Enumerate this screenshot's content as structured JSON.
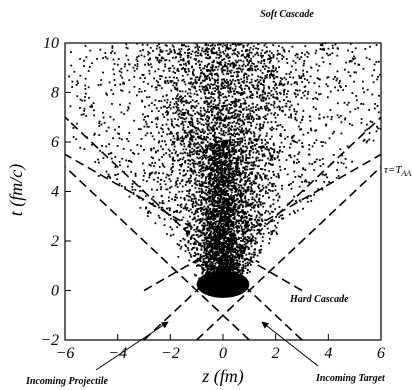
{
  "chart_data": {
    "type": "scatter",
    "xlabel": "z (fm)",
    "ylabel": "t (fm/c)",
    "xlim": [
      -6,
      6
    ],
    "ylim": [
      -2,
      10
    ],
    "xticks": [
      "−6",
      "−4",
      "−2",
      "0",
      "2",
      "4",
      "6"
    ],
    "yticks": [
      "−2",
      "0",
      "2",
      "4",
      "6",
      "8",
      "10"
    ],
    "grid": false,
    "series": [
      {
        "kind": "scatter-cloud",
        "points": [
          [
            0.0,
            0.3
          ],
          [
            -0.5,
            0.3
          ],
          [
            0.5,
            0.3
          ],
          [
            -0.3,
            0.0
          ],
          [
            0.3,
            0.0
          ],
          [
            0.0,
            0.5
          ],
          [
            -0.2,
            1.5
          ],
          [
            0.2,
            2.0
          ],
          [
            -0.4,
            2.5
          ],
          [
            0.3,
            3.0
          ],
          [
            0.0,
            3.5
          ],
          [
            -0.3,
            4.0
          ],
          [
            0.4,
            4.5
          ],
          [
            -0.5,
            5.0
          ],
          [
            0.1,
            5.5
          ],
          [
            -0.2,
            6.0
          ],
          [
            0.5,
            6.5
          ],
          [
            -0.6,
            7.0
          ],
          [
            0.3,
            7.5
          ],
          [
            -0.1,
            8.0
          ],
          [
            0.6,
            8.5
          ],
          [
            -0.4,
            9.0
          ],
          [
            0.2,
            9.5
          ],
          [
            -0.3,
            9.9
          ],
          [
            1.2,
            4.0
          ],
          [
            -1.3,
            4.5
          ],
          [
            1.8,
            5.5
          ],
          [
            -1.9,
            6.0
          ],
          [
            2.5,
            7.0
          ],
          [
            -2.6,
            7.5
          ],
          [
            3.2,
            8.5
          ],
          [
            -3.4,
            9.0
          ],
          [
            4.0,
            9.5
          ],
          [
            -4.2,
            9.8
          ],
          [
            1.0,
            6.8
          ],
          [
            -1.1,
            8.2
          ],
          [
            2.0,
            8.9
          ],
          [
            -2.2,
            9.3
          ],
          [
            3.0,
            9.6
          ],
          [
            -3.0,
            6.9
          ],
          [
            1.5,
            2.8
          ],
          [
            -1.6,
            3.2
          ]
        ]
      }
    ],
    "guide_lines": [
      {
        "kind": "dashed",
        "points": [
          [
            -1.0,
            -2.0
          ],
          [
            6.0,
            5.0
          ]
        ]
      },
      {
        "kind": "dashed",
        "points": [
          [
            1.0,
            -2.0
          ],
          [
            -6.0,
            5.0
          ]
        ]
      },
      {
        "kind": "dashed",
        "points": [
          [
            -3.0,
            -2.0
          ],
          [
            6.0,
            7.0
          ]
        ]
      },
      {
        "kind": "dashed",
        "points": [
          [
            3.0,
            -2.0
          ],
          [
            -6.0,
            7.0
          ]
        ]
      },
      {
        "kind": "dashed",
        "points": [
          [
            -3.0,
            0.0
          ],
          [
            6.0,
            5.5
          ]
        ]
      },
      {
        "kind": "dashed",
        "points": [
          [
            3.0,
            0.0
          ],
          [
            -6.0,
            5.5
          ]
        ]
      }
    ],
    "annotations": {
      "soft_cascade": "Soft Cascade",
      "hard_cascade": "Hard Cascade",
      "tau_label": "τ=T",
      "tau_subscript": "AA",
      "incoming_projectile": "Incoming Projectile",
      "incoming_target": "Incoming Target"
    }
  }
}
